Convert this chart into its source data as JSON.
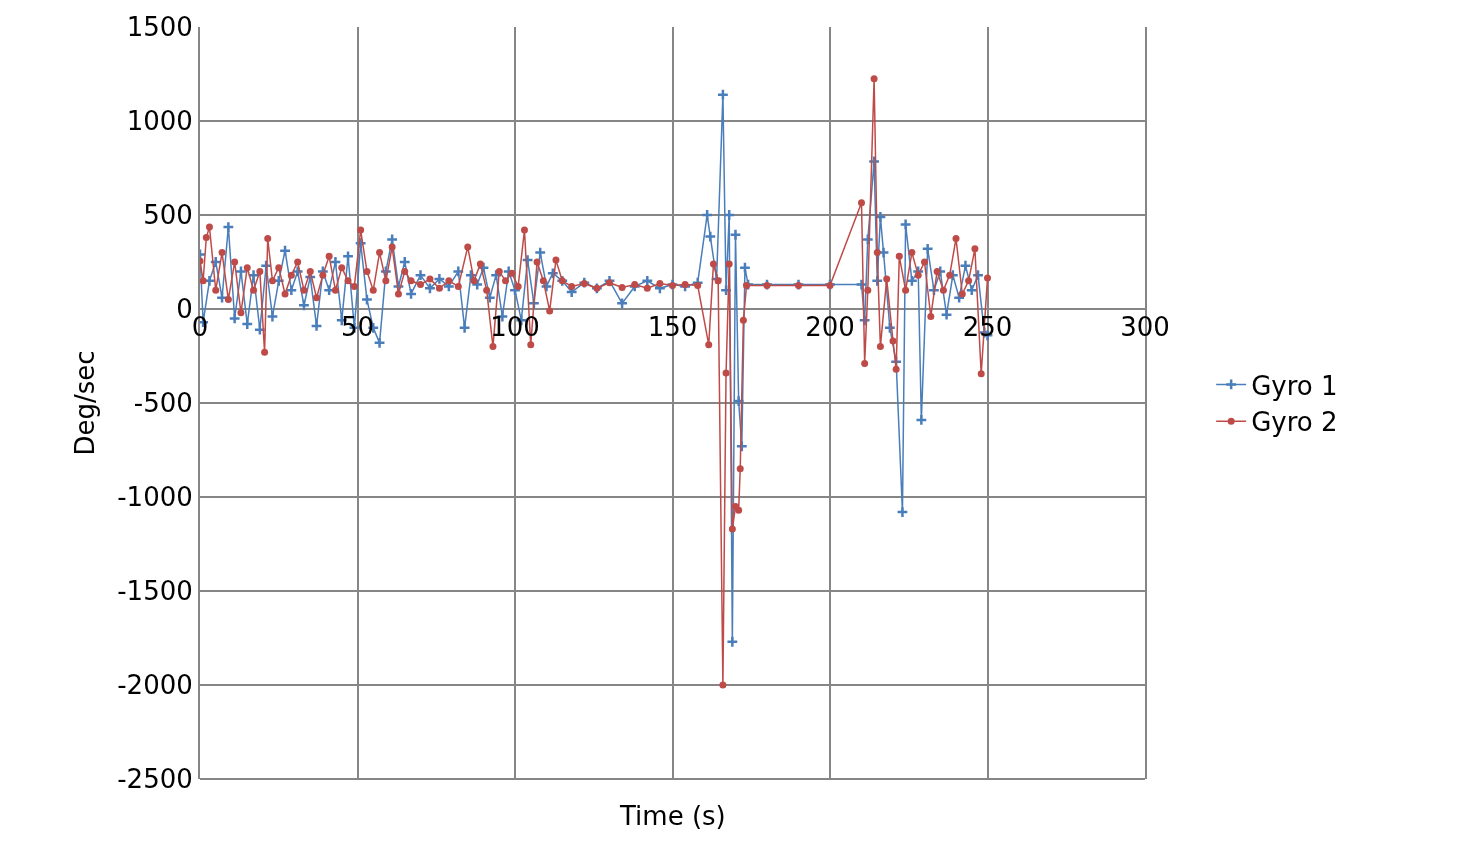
{
  "chart_data": {
    "type": "line",
    "xlabel": "Time (s)",
    "ylabel": "Deg/sec",
    "xlim": [
      0,
      300
    ],
    "xticks": [
      0,
      50,
      100,
      150,
      200,
      250,
      300
    ],
    "ylim": [
      -2500,
      1500
    ],
    "yticks": [
      -2500,
      -2000,
      -1500,
      -1000,
      -500,
      0,
      500,
      1000,
      1500
    ],
    "grid": true,
    "legend": "right",
    "series": [
      {
        "name": "Gyro 1",
        "color": "#4a7ebb",
        "marker": "cross",
        "x": [
          0,
          1,
          3,
          5,
          7,
          9,
          11,
          13,
          15,
          17,
          19,
          21,
          23,
          25,
          27,
          29,
          31,
          33,
          35,
          37,
          39,
          41,
          43,
          45,
          47,
          49,
          51,
          53,
          55,
          57,
          59,
          61,
          63,
          65,
          67,
          70,
          73,
          76,
          79,
          82,
          84,
          86,
          88,
          90,
          92,
          94,
          96,
          98,
          100,
          102,
          104,
          106,
          108,
          110,
          112,
          115,
          118,
          122,
          126,
          130,
          134,
          138,
          142,
          146,
          150,
          154,
          158,
          161,
          162,
          164,
          166,
          167,
          168,
          169,
          170,
          171,
          172,
          173,
          174,
          180,
          190,
          200,
          210,
          211,
          212,
          214,
          215,
          216,
          217,
          219,
          221,
          223,
          224,
          226,
          228,
          229,
          231,
          233,
          235,
          237,
          239,
          241,
          243,
          245,
          247,
          249,
          250
        ],
        "values": [
          290,
          -70,
          150,
          250,
          60,
          436,
          -50,
          200,
          -80,
          180,
          -110,
          230,
          -40,
          150,
          310,
          100,
          200,
          20,
          170,
          -90,
          200,
          100,
          250,
          -60,
          280,
          -100,
          350,
          50,
          -100,
          -180,
          200,
          370,
          120,
          250,
          80,
          180,
          110,
          160,
          120,
          200,
          -100,
          180,
          130,
          220,
          60,
          180,
          -40,
          200,
          100,
          -60,
          260,
          30,
          300,
          120,
          190,
          150,
          90,
          140,
          110,
          150,
          30,
          120,
          150,
          110,
          130,
          120,
          140,
          500,
          385,
          160,
          1140,
          100,
          500,
          -1770,
          395,
          -490,
          -730,
          220,
          130,
          130,
          130,
          130,
          130,
          -60,
          370,
          785,
          150,
          490,
          300,
          -100,
          -280,
          -1080,
          450,
          150,
          200,
          -590,
          320,
          100,
          200,
          -30,
          180,
          60,
          230,
          100,
          180,
          -125,
          -140
        ]
      },
      {
        "name": "Gyro 2",
        "color": "#be4b48",
        "marker": "circle",
        "x": [
          0,
          1,
          2,
          3,
          5,
          7,
          9,
          11,
          13,
          15,
          17,
          19,
          20.5,
          21.5,
          23,
          25,
          27,
          29,
          31,
          33,
          35,
          37,
          39,
          41,
          43,
          45,
          47,
          49,
          51,
          53,
          55,
          57,
          59,
          61,
          63,
          65,
          67,
          70,
          73,
          76,
          79,
          82,
          85,
          87,
          89,
          91,
          93,
          95,
          97,
          99,
          101,
          103,
          105,
          107,
          109,
          111,
          113,
          115,
          118,
          122,
          126,
          130,
          134,
          138,
          142,
          146,
          150,
          154,
          158,
          161.5,
          163,
          164.5,
          166,
          167,
          168,
          169,
          170,
          171,
          171.5,
          172.5,
          173.5,
          180,
          190,
          200,
          210,
          211,
          212,
          214,
          215,
          216,
          218,
          220,
          221,
          222,
          224,
          226,
          228,
          230,
          232,
          234,
          236,
          238,
          240,
          242,
          244,
          246,
          248,
          250
        ],
        "values": [
          255,
          150,
          380,
          436,
          100,
          300,
          50,
          250,
          -20,
          220,
          100,
          200,
          -230,
          375,
          150,
          220,
          80,
          180,
          250,
          100,
          200,
          60,
          180,
          280,
          100,
          220,
          150,
          120,
          420,
          200,
          100,
          300,
          150,
          330,
          80,
          200,
          150,
          130,
          160,
          110,
          150,
          120,
          330,
          150,
          240,
          100,
          -200,
          200,
          150,
          190,
          120,
          420,
          -190,
          250,
          150,
          -10,
          260,
          150,
          120,
          135,
          110,
          140,
          115,
          130,
          110,
          135,
          125,
          130,
          125,
          -190,
          240,
          150,
          -2000,
          -340,
          240,
          -1170,
          -1050,
          -1070,
          -850,
          -60,
          125,
          125,
          125,
          125,
          565,
          -290,
          100,
          1225,
          300,
          -200,
          160,
          -170,
          -320,
          280,
          100,
          300,
          180,
          250,
          -40,
          200,
          100,
          180,
          375,
          80,
          150,
          320,
          -345,
          165
        ]
      }
    ]
  }
}
